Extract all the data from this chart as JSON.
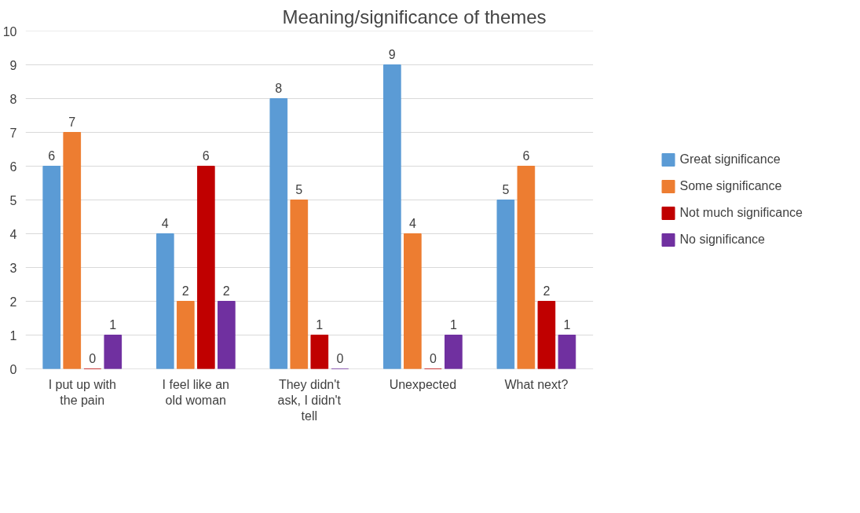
{
  "chart_data": {
    "type": "bar",
    "title": "Meaning/significance of themes",
    "categories": [
      "I put up with the pain",
      "I feel like an old woman",
      "They didn't ask, I didn't tell",
      "Unexpected",
      "What next?"
    ],
    "series": [
      {
        "name": "Great significance",
        "color": "#5b9bd5",
        "values": [
          6,
          4,
          8,
          9,
          5
        ]
      },
      {
        "name": "Some significance",
        "color": "#ed7d31",
        "values": [
          7,
          2,
          5,
          4,
          6
        ]
      },
      {
        "name": "Not much significance",
        "color": "#c00000",
        "values": [
          0,
          6,
          1,
          0,
          2
        ]
      },
      {
        "name": "No significance",
        "color": "#7030a0",
        "values": [
          1,
          2,
          0,
          1,
          1
        ]
      }
    ],
    "ylim": [
      0,
      10
    ],
    "yticks": [
      0,
      1,
      2,
      3,
      4,
      5,
      6,
      7,
      8,
      9,
      10
    ],
    "grid": "y",
    "legend": "right",
    "data_labels": true
  }
}
